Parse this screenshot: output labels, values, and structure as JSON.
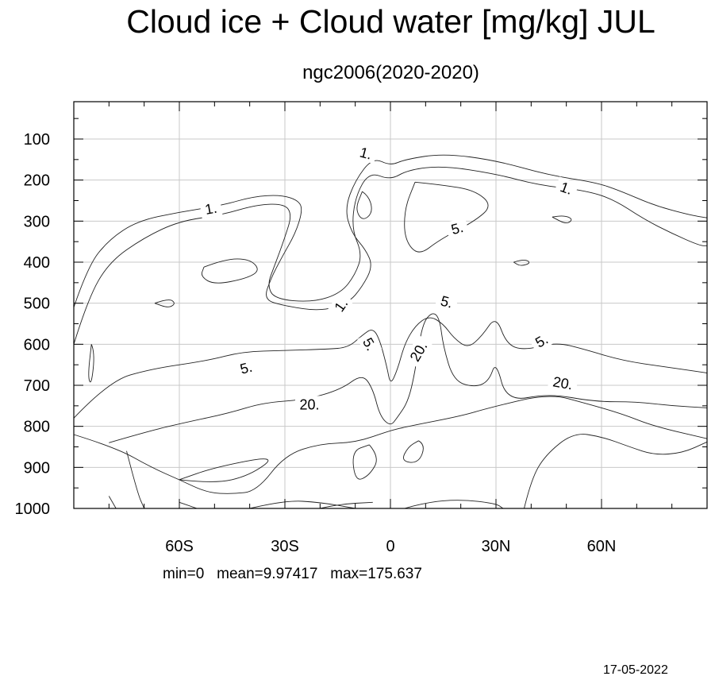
{
  "title": "Cloud ice + Cloud water [mg/kg] JUL",
  "subtitle": "ngc2006(2020-2020)",
  "stats": "min=0   mean=9.97417   max=175.637",
  "date": "17-05-2022",
  "chart_data": {
    "type": "contour",
    "x_ticks": [
      {
        "value": -60,
        "label": "60S"
      },
      {
        "value": -30,
        "label": "30S"
      },
      {
        "value": 0,
        "label": "0"
      },
      {
        "value": 30,
        "label": "30N"
      },
      {
        "value": 60,
        "label": "60N"
      }
    ],
    "y_ticks": [
      {
        "value": 100,
        "label": "100"
      },
      {
        "value": 200,
        "label": "200"
      },
      {
        "value": 300,
        "label": "300"
      },
      {
        "value": 400,
        "label": "400"
      },
      {
        "value": 500,
        "label": "500"
      },
      {
        "value": 600,
        "label": "600"
      },
      {
        "value": 700,
        "label": "700"
      },
      {
        "value": 800,
        "label": "800"
      },
      {
        "value": 900,
        "label": "900"
      },
      {
        "value": 1000,
        "label": "1000"
      }
    ],
    "xlim": [
      -90,
      90
    ],
    "ylim": [
      1000,
      10
    ],
    "y_reversed": true,
    "grid": true,
    "contour_levels": [
      1,
      5,
      20
    ],
    "contour_labels": [
      {
        "text": "1.",
        "lat": -51,
        "p": 270,
        "angle": -10
      },
      {
        "text": "1.",
        "lat": -7,
        "p": 135,
        "angle": 15
      },
      {
        "text": "1.",
        "lat": 50,
        "p": 220,
        "angle": 20
      },
      {
        "text": "1.",
        "lat": -14,
        "p": 505,
        "angle": -55
      },
      {
        "text": "5.",
        "lat": 19,
        "p": 318,
        "angle": -15
      },
      {
        "text": "5.",
        "lat": 16,
        "p": 497,
        "angle": 15
      },
      {
        "text": "5.",
        "lat": -41,
        "p": 658,
        "angle": -15
      },
      {
        "text": "5.",
        "lat": -6,
        "p": 600,
        "angle": 60
      },
      {
        "text": "5.",
        "lat": 43,
        "p": 592,
        "angle": -30
      },
      {
        "text": "20.",
        "lat": 8,
        "p": 618,
        "angle": -60
      },
      {
        "text": "20.",
        "lat": 49,
        "p": 695,
        "angle": 10
      },
      {
        "text": "20.",
        "lat": -23,
        "p": 747,
        "angle": 0
      }
    ],
    "contours": [
      {
        "level": 1,
        "points": [
          [
            -90,
            510
          ],
          [
            -86,
            410
          ],
          [
            -80,
            345
          ],
          [
            -72,
            300
          ],
          [
            -60,
            278
          ],
          [
            -48,
            262
          ],
          [
            -39,
            240
          ],
          [
            -31,
            236
          ],
          [
            -26,
            250
          ],
          [
            -25,
            275
          ],
          [
            -27,
            330
          ],
          [
            -31,
            390
          ],
          [
            -34,
            440
          ],
          [
            -36,
            490
          ],
          [
            -31,
            505
          ],
          [
            -20,
            520
          ],
          [
            -12,
            500
          ],
          [
            -8,
            460
          ],
          [
            -5,
            410
          ],
          [
            -7,
            370
          ],
          [
            -11,
            330
          ],
          [
            -13,
            270
          ],
          [
            -10,
            200
          ],
          [
            -5,
            145
          ],
          [
            0,
            165
          ],
          [
            4,
            150
          ],
          [
            15,
            135
          ],
          [
            30,
            152
          ],
          [
            45,
            188
          ],
          [
            58,
            205
          ],
          [
            65,
            225
          ],
          [
            75,
            262
          ],
          [
            85,
            285
          ],
          [
            90,
            292
          ]
        ]
      },
      {
        "level": 1,
        "points": [
          [
            -90,
            600
          ],
          [
            -86,
            490
          ],
          [
            -80,
            400
          ],
          [
            -70,
            340
          ],
          [
            -60,
            300
          ],
          [
            -48,
            285
          ],
          [
            -38,
            260
          ],
          [
            -30,
            258
          ],
          [
            -28,
            285
          ],
          [
            -30,
            340
          ],
          [
            -33,
            410
          ],
          [
            -35,
            455
          ],
          [
            -33,
            490
          ],
          [
            -22,
            498
          ],
          [
            -14,
            475
          ],
          [
            -10,
            430
          ],
          [
            -8,
            380
          ],
          [
            -11,
            320
          ],
          [
            -10,
            240
          ],
          [
            -6,
            180
          ],
          [
            0,
            200
          ],
          [
            5,
            175
          ],
          [
            15,
            165
          ],
          [
            30,
            185
          ],
          [
            42,
            212
          ],
          [
            55,
            225
          ],
          [
            63,
            245
          ],
          [
            72,
            295
          ],
          [
            80,
            330
          ],
          [
            88,
            360
          ],
          [
            90,
            360
          ]
        ]
      },
      {
        "level": 5,
        "points": [
          [
            -8,
            228
          ],
          [
            -6,
            240
          ],
          [
            -5,
            280
          ],
          [
            -8,
            300
          ],
          [
            -10,
            270
          ],
          [
            -8,
            228
          ]
        ]
      },
      {
        "level": 5,
        "points": [
          [
            7,
            205
          ],
          [
            15,
            212
          ],
          [
            24,
            225
          ],
          [
            29,
            262
          ],
          [
            24,
            300
          ],
          [
            14,
            345
          ],
          [
            8,
            385
          ],
          [
            4,
            345
          ],
          [
            4,
            270
          ],
          [
            7,
            205
          ]
        ]
      },
      {
        "level": 5,
        "points": [
          [
            -90,
            780
          ],
          [
            -80,
            690
          ],
          [
            -68,
            660
          ],
          [
            -52,
            640
          ],
          [
            -42,
            618
          ],
          [
            -30,
            615
          ],
          [
            -18,
            612
          ],
          [
            -12,
            608
          ],
          [
            -8,
            578
          ],
          [
            -5,
            560
          ],
          [
            -3,
            590
          ],
          [
            -1,
            655
          ],
          [
            0,
            700
          ],
          [
            2,
            662
          ],
          [
            4,
            600
          ],
          [
            7,
            555
          ],
          [
            11,
            530
          ],
          [
            15,
            550
          ],
          [
            18,
            585
          ],
          [
            22,
            610
          ],
          [
            26,
            580
          ],
          [
            30,
            530
          ],
          [
            33,
            600
          ],
          [
            38,
            615
          ],
          [
            47,
            595
          ],
          [
            55,
            612
          ],
          [
            66,
            640
          ],
          [
            78,
            655
          ],
          [
            90,
            670
          ]
        ]
      },
      {
        "level": 20,
        "points": [
          [
            -80,
            840
          ],
          [
            -68,
            810
          ],
          [
            -58,
            790
          ],
          [
            -46,
            768
          ],
          [
            -36,
            742
          ],
          [
            -24,
            735
          ],
          [
            -14,
            710
          ],
          [
            -8,
            672
          ],
          [
            -5,
            708
          ],
          [
            -3,
            775
          ],
          [
            0,
            800
          ],
          [
            2,
            778
          ],
          [
            5,
            740
          ],
          [
            7,
            668
          ],
          [
            9,
            550
          ],
          [
            12,
            520
          ],
          [
            14,
            538
          ],
          [
            15,
            605
          ],
          [
            18,
            690
          ],
          [
            24,
            705
          ],
          [
            28,
            690
          ],
          [
            30,
            640
          ],
          [
            33,
            740
          ],
          [
            45,
            720
          ],
          [
            58,
            740
          ],
          [
            70,
            740
          ],
          [
            80,
            750
          ],
          [
            90,
            755
          ]
        ]
      },
      {
        "level": 20,
        "points": [
          [
            -90,
            820
          ],
          [
            -78,
            852
          ],
          [
            -68,
            900
          ],
          [
            -60,
            930
          ],
          [
            -52,
            962
          ],
          [
            -45,
            965
          ],
          [
            -38,
            958
          ],
          [
            -30,
            870
          ],
          [
            -20,
            842
          ],
          [
            -10,
            840
          ],
          [
            0,
            810
          ],
          [
            5,
            800
          ],
          [
            20,
            775
          ],
          [
            28,
            755
          ],
          [
            45,
            720
          ],
          [
            56,
            745
          ],
          [
            66,
            770
          ],
          [
            75,
            800
          ],
          [
            90,
            830
          ]
        ]
      },
      {
        "level": 5,
        "points": [
          [
            -53,
            412
          ],
          [
            -47,
            392
          ],
          [
            -40,
            392
          ],
          [
            -37,
            420
          ],
          [
            -41,
            440
          ],
          [
            -50,
            455
          ],
          [
            -54,
            435
          ],
          [
            -53,
            412
          ]
        ]
      },
      {
        "level": 1,
        "points": [
          [
            -67,
            500
          ],
          [
            -63,
            488
          ],
          [
            -61,
            500
          ],
          [
            -63,
            512
          ],
          [
            -67,
            500
          ]
        ]
      },
      {
        "level": 1,
        "points": [
          [
            46,
            290
          ],
          [
            49,
            285
          ],
          [
            52,
            295
          ],
          [
            50,
            308
          ],
          [
            46,
            290
          ]
        ]
      },
      {
        "level": 1,
        "points": [
          [
            35,
            400
          ],
          [
            38,
            392
          ],
          [
            40,
            402
          ],
          [
            37,
            410
          ],
          [
            35,
            400
          ]
        ]
      },
      {
        "level": 1,
        "points": [
          [
            -85,
            600
          ],
          [
            -84,
            620
          ],
          [
            -85,
            700
          ],
          [
            -86,
            680
          ],
          [
            -85,
            600
          ]
        ]
      },
      {
        "level": 20,
        "points": [
          [
            -6,
            845
          ],
          [
            -3,
            875
          ],
          [
            -6,
            920
          ],
          [
            -10,
            935
          ],
          [
            -11,
            860
          ],
          [
            -6,
            845
          ]
        ]
      },
      {
        "level": 20,
        "points": [
          [
            8,
            835
          ],
          [
            10,
            845
          ],
          [
            8,
            890
          ],
          [
            3,
            885
          ],
          [
            5,
            850
          ],
          [
            8,
            835
          ]
        ]
      },
      {
        "level": 20,
        "points": [
          [
            -60,
            930
          ],
          [
            -50,
            940
          ],
          [
            -40,
            920
          ],
          [
            -32,
            870
          ],
          [
            -50,
            900
          ],
          [
            -60,
            930
          ]
        ]
      },
      {
        "level": 5,
        "points": [
          [
            38,
            1000
          ],
          [
            40,
            930
          ],
          [
            44,
            870
          ],
          [
            52,
            815
          ],
          [
            60,
            825
          ],
          [
            68,
            850
          ],
          [
            75,
            870
          ],
          [
            83,
            865
          ],
          [
            90,
            838
          ]
        ]
      },
      {
        "level": 5,
        "points": [
          [
            -60,
            985
          ],
          [
            -55,
            1000
          ]
        ]
      },
      {
        "level": 5,
        "points": [
          [
            -40,
            1000
          ],
          [
            -30,
            980
          ],
          [
            -20,
            985
          ],
          [
            -10,
            1000
          ]
        ]
      },
      {
        "level": 5,
        "points": [
          [
            -20,
            1000
          ],
          [
            -15,
            990
          ],
          [
            -5,
            985
          ]
        ]
      },
      {
        "level": 5,
        "points": [
          [
            4,
            1000
          ],
          [
            10,
            985
          ],
          [
            20,
            978
          ],
          [
            30,
            988
          ],
          [
            32,
            1000
          ]
        ]
      },
      {
        "level": 1,
        "points": [
          [
            -80,
            970
          ],
          [
            -78,
            1000
          ]
        ]
      },
      {
        "level": 1,
        "points": [
          [
            -75,
            860
          ],
          [
            -72,
            960
          ],
          [
            -70,
            1000
          ]
        ]
      }
    ]
  }
}
